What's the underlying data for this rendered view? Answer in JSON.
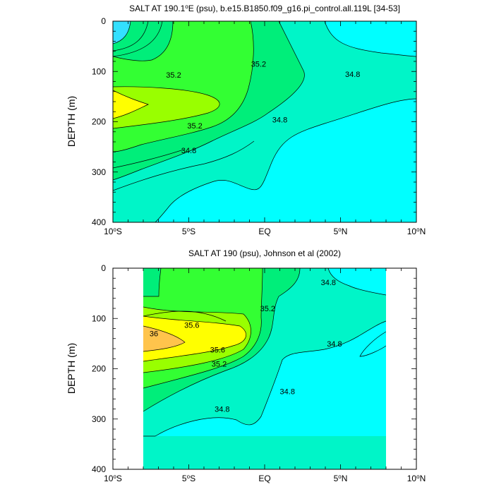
{
  "chart_data": [
    {
      "type": "contour",
      "title": "SALT AT 190.1°E (psu), b.e15.B1850.f09_g16.pi_control.all.119L [34-53]",
      "title_main": "SALT AT 190.1",
      "title_sup": "o",
      "title_rest": "E (psu), b.e15.B1850.f09_g16.pi_control.all.119L [34-53]",
      "ylabel": "DEPTH (m)",
      "xlim": [
        -10,
        10
      ],
      "ylim": [
        400,
        0
      ],
      "x_ticks": [
        {
          "value": -10,
          "num": "10",
          "sup": "o",
          "hem": "S"
        },
        {
          "value": -5,
          "num": "5",
          "sup": "o",
          "hem": "S"
        },
        {
          "value": 0,
          "num": "EQ",
          "sup": "",
          "hem": ""
        },
        {
          "value": 5,
          "num": "5",
          "sup": "o",
          "hem": "N"
        },
        {
          "value": 10,
          "num": "10",
          "sup": "o",
          "hem": "N"
        }
      ],
      "y_ticks": [
        "0",
        "100",
        "200",
        "300",
        "400"
      ],
      "contour_labels": [
        {
          "text": "35.2",
          "lat": -6.0,
          "depth": 107
        },
        {
          "text": "35.2",
          "lat": -0.4,
          "depth": 85
        },
        {
          "text": "34.8",
          "lat": 5.8,
          "depth": 105
        },
        {
          "text": "35.2",
          "lat": -4.6,
          "depth": 208
        },
        {
          "text": "34.8",
          "lat": 1.0,
          "depth": 196
        },
        {
          "text": "34.8",
          "lat": -5.0,
          "depth": 257
        }
      ]
    },
    {
      "type": "contour",
      "title": "SALT AT 190 (psu), Johnson et al (2002)",
      "ylabel": "DEPTH (m)",
      "xlim": [
        -10,
        10
      ],
      "ylim": [
        400,
        0
      ],
      "data_lat_range": [
        -8,
        8
      ],
      "x_ticks": [
        {
          "value": -10,
          "num": "10",
          "sup": "o",
          "hem": "S"
        },
        {
          "value": -5,
          "num": "5",
          "sup": "o",
          "hem": "S"
        },
        {
          "value": 0,
          "num": "EQ",
          "sup": "",
          "hem": ""
        },
        {
          "value": 5,
          "num": "5",
          "sup": "o",
          "hem": "N"
        },
        {
          "value": 10,
          "num": "10",
          "sup": "o",
          "hem": "N"
        }
      ],
      "y_ticks": [
        "0",
        "100",
        "200",
        "300",
        "400"
      ],
      "contour_labels": [
        {
          "text": "34.8",
          "lat": 4.2,
          "depth": 28
        },
        {
          "text": "35.2",
          "lat": 0.2,
          "depth": 80
        },
        {
          "text": "35.6",
          "lat": -4.8,
          "depth": 113
        },
        {
          "text": "36",
          "lat": -7.3,
          "depth": 130
        },
        {
          "text": "34.8",
          "lat": 4.6,
          "depth": 150
        },
        {
          "text": "35.6",
          "lat": -3.1,
          "depth": 162
        },
        {
          "text": "35.2",
          "lat": -3.0,
          "depth": 190
        },
        {
          "text": "34.8",
          "lat": 1.5,
          "depth": 245
        },
        {
          "text": "34.8",
          "lat": -2.8,
          "depth": 280
        }
      ]
    }
  ],
  "colors": {
    "cyan": "#00ffff",
    "cyan_light": "#33e0ff",
    "aquamarine": "#00f5c8",
    "spring_green": "#00ee7a",
    "green": "#33ff33",
    "chartreuse": "#99ff00",
    "yellow": "#ffff00",
    "orange": "#ffc44c"
  }
}
